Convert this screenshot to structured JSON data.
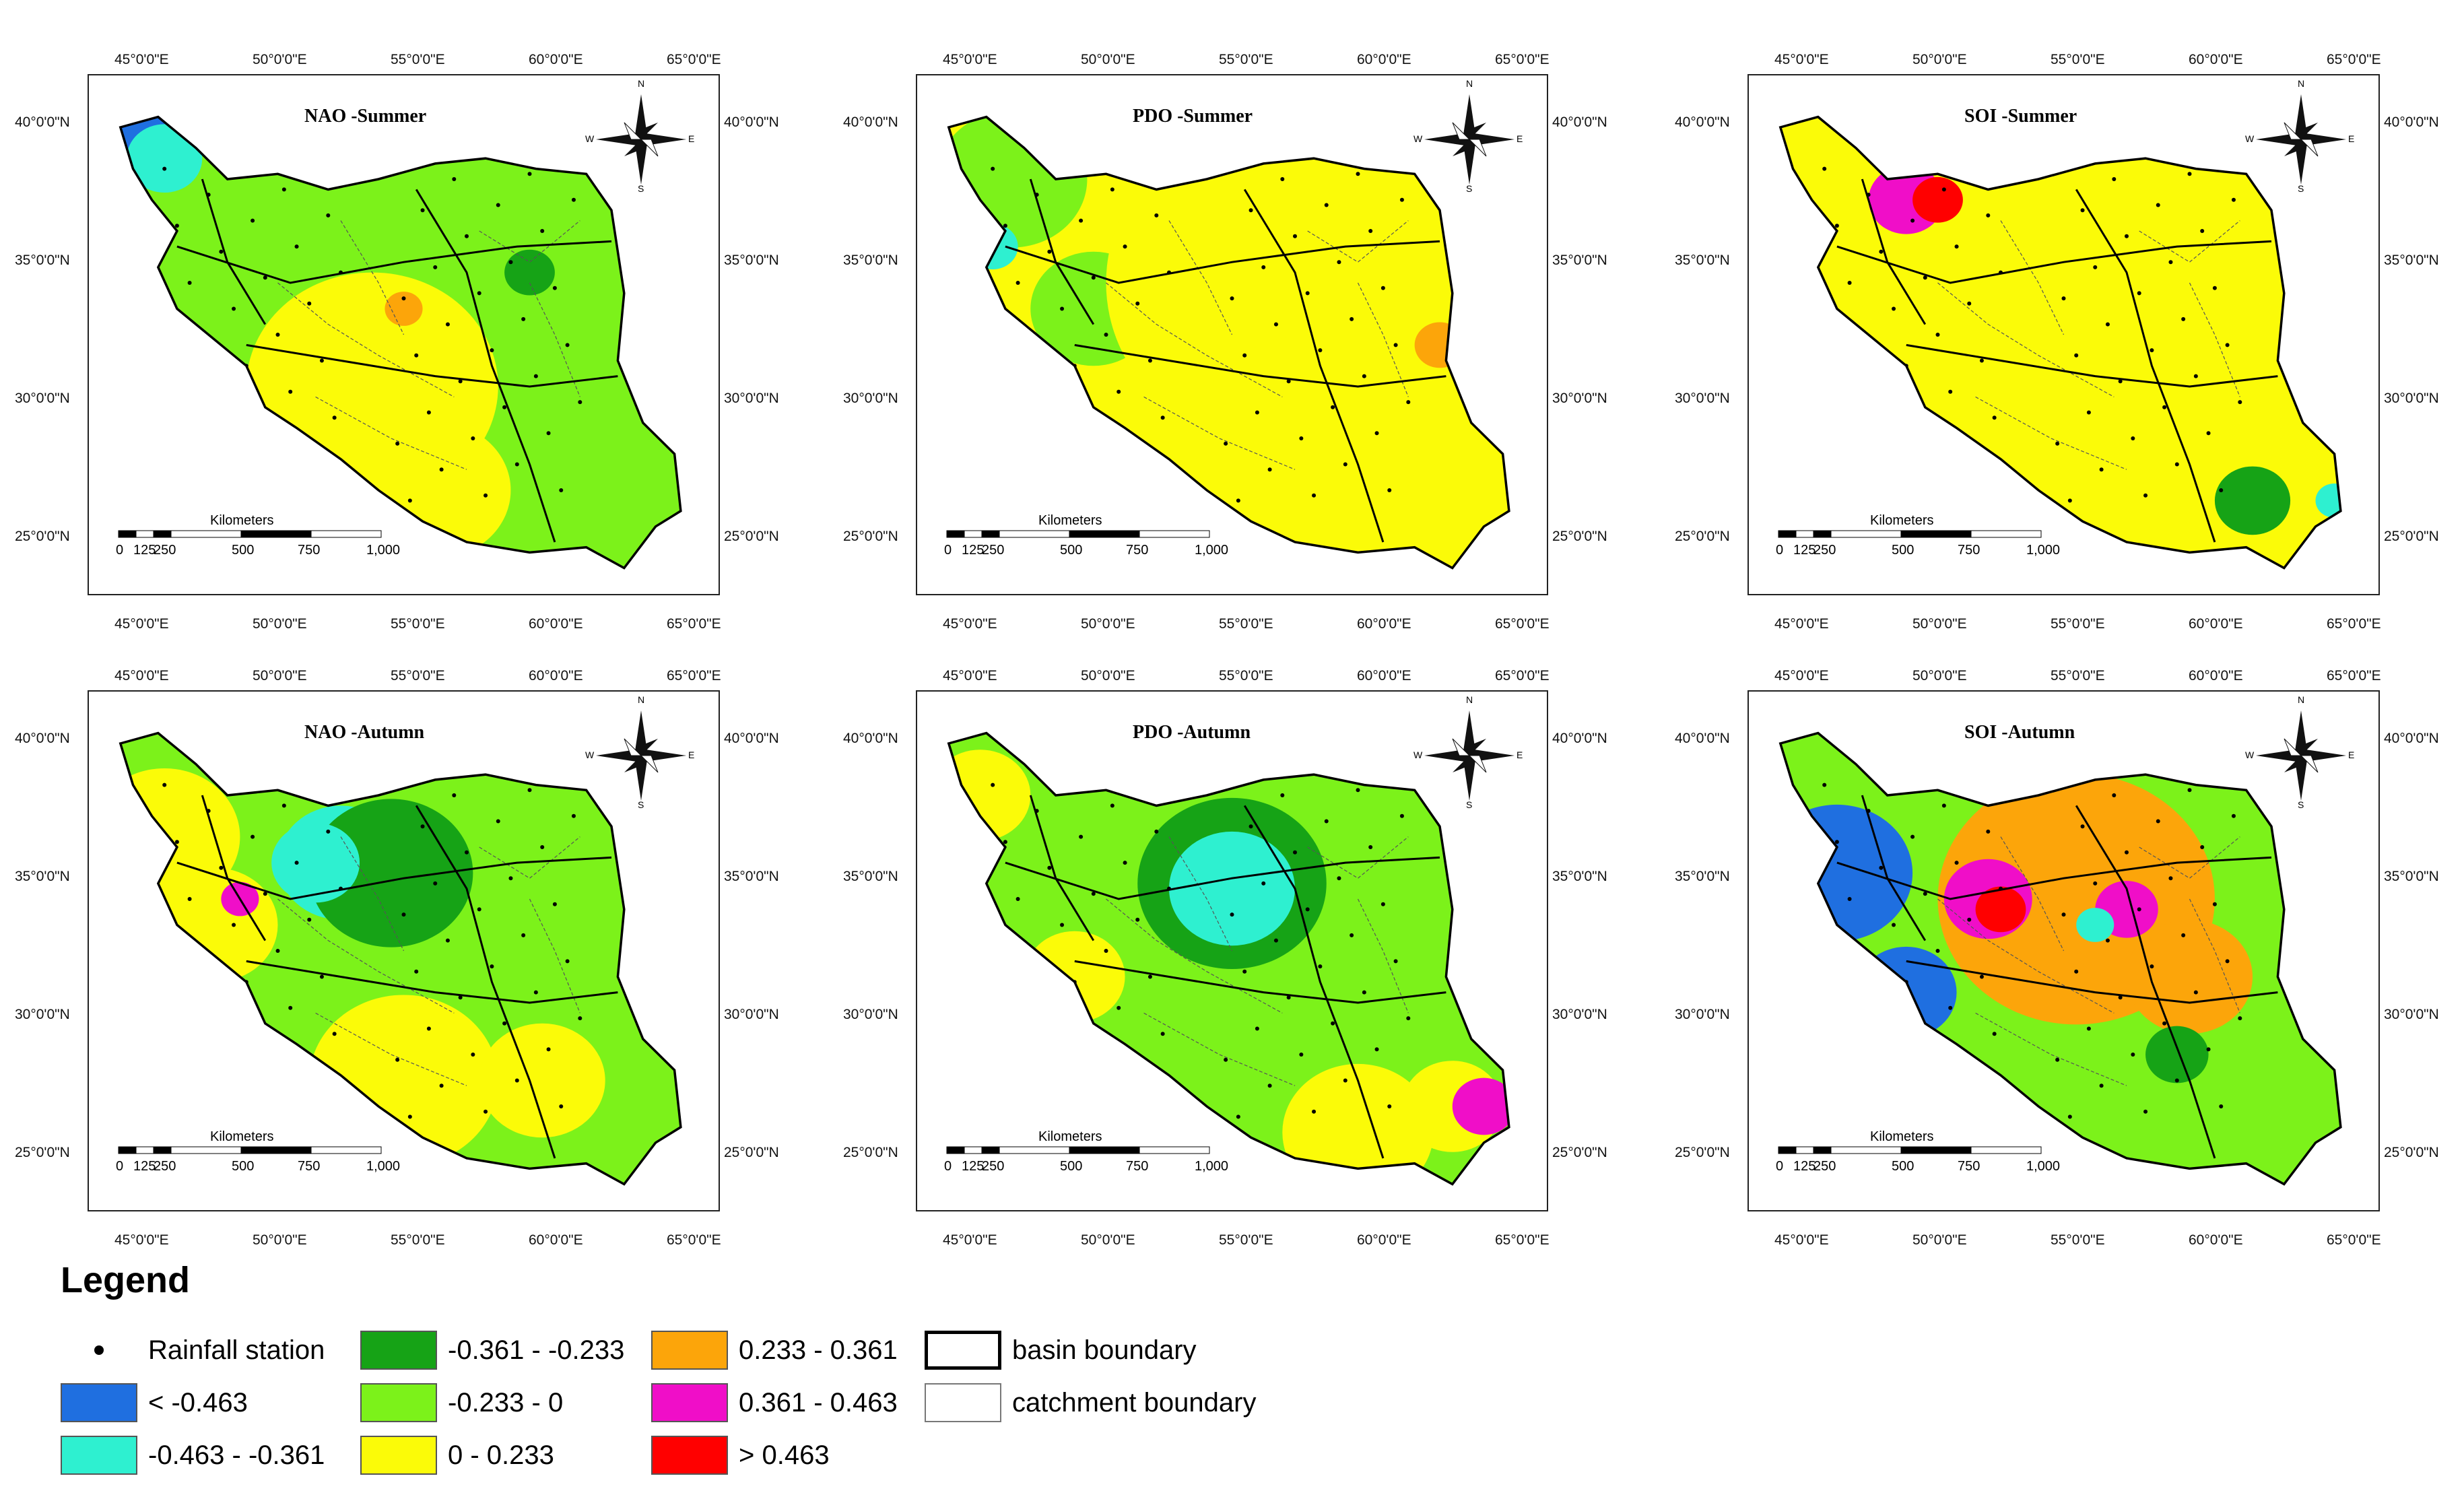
{
  "panels": [
    {
      "title": "NAO -Summer",
      "variant": 0
    },
    {
      "title": "PDO -Summer",
      "variant": 1
    },
    {
      "title": "SOI -Summer",
      "variant": 2
    },
    {
      "title": "NAO -Autumn",
      "variant": 3
    },
    {
      "title": "PDO -Autumn",
      "variant": 4
    },
    {
      "title": "SOI -Autumn",
      "variant": 5
    }
  ],
  "axes": {
    "lon_ticks": [
      "45°0'0\"E",
      "50°0'0\"E",
      "55°0'0\"E",
      "60°0'0\"E",
      "65°0'0\"E"
    ],
    "lat_ticks": [
      "40°0'0\"N",
      "35°0'0\"N",
      "30°0'0\"N",
      "25°0'0\"N"
    ]
  },
  "north_arrow": {
    "n": "N",
    "s": "S",
    "e": "E",
    "w": "W"
  },
  "scale": {
    "title": "Kilometers",
    "labels": [
      "0",
      "125",
      "250",
      "500",
      "750",
      "1,000"
    ]
  },
  "legend": {
    "title": "Legend",
    "station_label": "Rainfall station",
    "classes": [
      {
        "label": "< -0.463",
        "color": "#1f6fe0"
      },
      {
        "label": "-0.463 - -0.361",
        "color": "#2ef0d0"
      },
      {
        "label": "-0.361 - -0.233",
        "color": "#16a316"
      },
      {
        "label": "-0.233 - 0",
        "color": "#7cf21a"
      },
      {
        "label": "0 - 0.233",
        "color": "#fbfb08"
      },
      {
        "label": "0.233 - 0.361",
        "color": "#fca50a"
      },
      {
        "label": "0.361 - 0.463",
        "color": "#f00ec8"
      },
      {
        "label": "> 0.463",
        "color": "#ff0000"
      }
    ],
    "basin_label": "basin boundary",
    "catchment_label": "catchment boundary"
  }
}
